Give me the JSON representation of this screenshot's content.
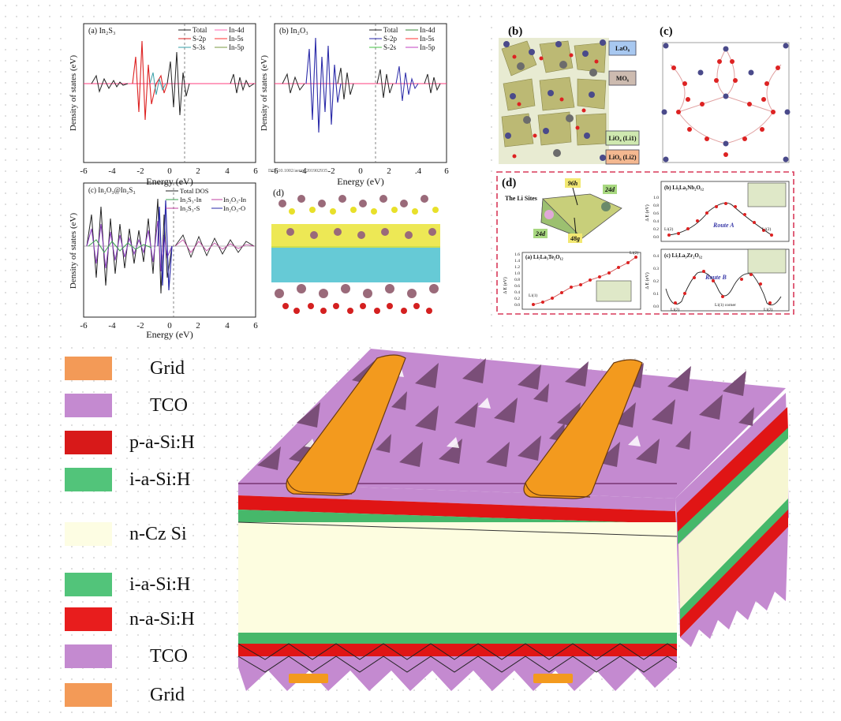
{
  "dos_panels": {
    "a": {
      "label": "(a) In₂S₃",
      "legend": [
        "Total",
        "S-2p",
        "S-3s",
        "In-4d",
        "In-5s",
        "In-5p"
      ]
    },
    "b": {
      "label": "(b) In₂O₃",
      "legend": [
        "Total",
        "S-2p",
        "S-2s",
        "In-4d",
        "In-5s",
        "In-5p"
      ]
    },
    "c": {
      "label": "(c) In₂O₃@In₂S₃",
      "legend": [
        "Total DOS",
        "In₂S₃-In",
        "In₂S₃-S",
        "In₂O₃-In",
        "In₂O₃-O"
      ]
    },
    "d": {
      "label": "(d)"
    },
    "ylabel": "Density of states (eV)",
    "xlabel": "Energy (eV)",
    "xticks": [
      "-6",
      "-4",
      "-2",
      "0",
      "2",
      "4",
      "6"
    ],
    "xticks_b": [
      "-6",
      "-4",
      "-2",
      "0",
      "2",
      ".4",
      "6"
    ],
    "doi": "DOI:10.1002/aenm.201902935"
  },
  "crystal": {
    "b_label": "(b)",
    "c_label": "(c)",
    "tags": [
      "LaO₈",
      "MO₆",
      "LiO₄ (Li1)",
      "LiO₆ (Li2)"
    ]
  },
  "li_panels": {
    "d_label": "(d)",
    "sites_title": "The Li Sites",
    "sites": [
      "96h",
      "24d",
      "24d",
      "48g"
    ],
    "a": {
      "label": "(a) Li₇La₃Te₂O₁₂",
      "ylabel": "Δ E (eV)",
      "yticks": [
        "0.0",
        "0.2",
        "0.4",
        "0.6",
        "0.8",
        "1.0",
        "1.2",
        "1.4",
        "1.6"
      ],
      "end_labels": [
        "Li(1)",
        "Li(2)"
      ]
    },
    "b": {
      "label": "(b) Li₅La₃Nb₂O₁₂",
      "ylabel": "Δ E (eV)",
      "yticks": [
        "0.0",
        "0.2",
        "0.4",
        "0.6",
        "0.8",
        "1.0"
      ],
      "route": "Route A",
      "end_labels": [
        "Li(2)",
        "Li(2)"
      ]
    },
    "c": {
      "label": "(c) Li₇La₃Zr₂O₁₂",
      "ylabel": "Δ E (eV)",
      "yticks": [
        "0.0",
        "0.1",
        "0.2",
        "0.3",
        "0.4"
      ],
      "route": "Route B",
      "end_labels": [
        "Li(2)",
        "Li(1) corner",
        "Li(2)"
      ]
    }
  },
  "solar_cell": {
    "legend": [
      {
        "label": "Grid",
        "color": "#f39a57"
      },
      {
        "label": "TCO",
        "color": "#c48ad0"
      },
      {
        "label": "p-a-Si:H",
        "color": "#d81919"
      },
      {
        "label": "i-a-Si:H",
        "color": "#52c47a"
      },
      {
        "label": "n-Cz  Si",
        "color": "#fdfde3"
      },
      {
        "label": "i-a-Si:H",
        "color": "#52c47a"
      },
      {
        "label": "n-a-Si:H",
        "color": "#e81d1d"
      },
      {
        "label": "TCO",
        "color": "#c48ad0"
      },
      {
        "label": "Grid",
        "color": "#f39a57"
      }
    ],
    "colors": {
      "tco": "#c48ad0",
      "pyramid": "#7a4e78",
      "grid": "#f39a1e",
      "wafer": "#fdfde0",
      "red": "#e01515",
      "green": "#46b86a"
    }
  }
}
